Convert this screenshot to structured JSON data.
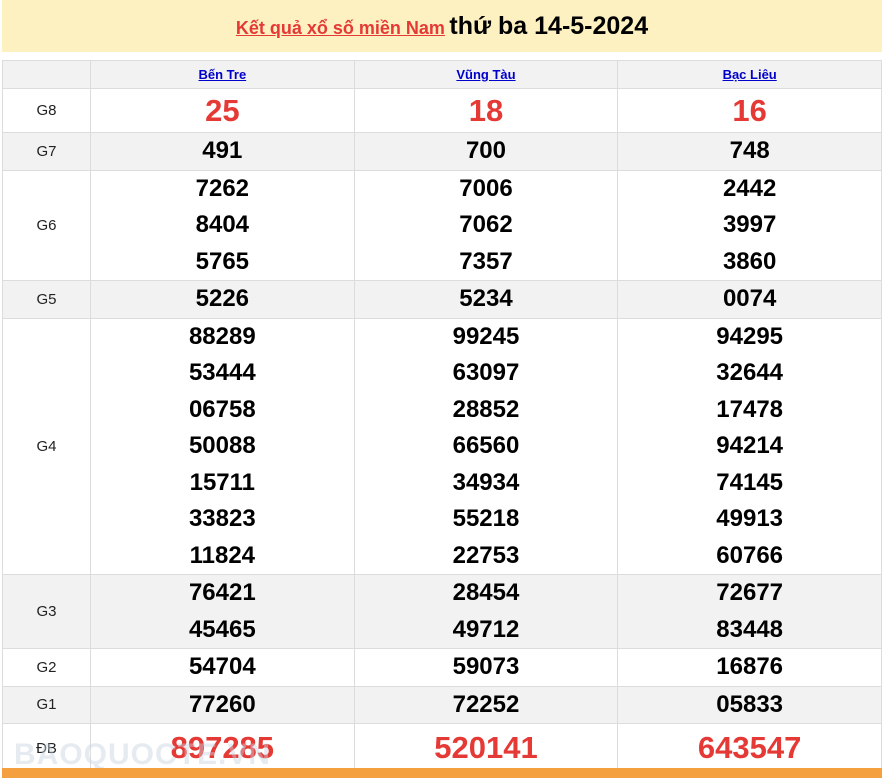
{
  "header": {
    "link": "Kết quả xổ số miền Nam",
    "date": "thứ ba 14-5-2024"
  },
  "provinces": [
    "Bến Tre",
    "Vũng Tàu",
    "Bạc Liêu"
  ],
  "prizes": [
    {
      "label": "G8",
      "values": [
        [
          "25"
        ],
        [
          "18"
        ],
        [
          "16"
        ]
      ]
    },
    {
      "label": "G7",
      "values": [
        [
          "491"
        ],
        [
          "700"
        ],
        [
          "748"
        ]
      ]
    },
    {
      "label": "G6",
      "values": [
        [
          "7262",
          "8404",
          "5765"
        ],
        [
          "7006",
          "7062",
          "7357"
        ],
        [
          "2442",
          "3997",
          "3860"
        ]
      ]
    },
    {
      "label": "G5",
      "values": [
        [
          "5226"
        ],
        [
          "5234"
        ],
        [
          "0074"
        ]
      ]
    },
    {
      "label": "G4",
      "values": [
        [
          "88289",
          "53444",
          "06758",
          "50088",
          "15711",
          "33823",
          "11824"
        ],
        [
          "99245",
          "63097",
          "28852",
          "66560",
          "34934",
          "55218",
          "22753"
        ],
        [
          "94295",
          "32644",
          "17478",
          "94214",
          "74145",
          "49913",
          "60766"
        ]
      ]
    },
    {
      "label": "G3",
      "values": [
        [
          "76421",
          "45465"
        ],
        [
          "28454",
          "49712"
        ],
        [
          "72677",
          "83448"
        ]
      ]
    },
    {
      "label": "G2",
      "values": [
        [
          "54704"
        ],
        [
          "59073"
        ],
        [
          "16876"
        ]
      ]
    },
    {
      "label": "G1",
      "values": [
        [
          "77260"
        ],
        [
          "72252"
        ],
        [
          "05833"
        ]
      ]
    },
    {
      "label": "ĐB",
      "values": [
        [
          "897285"
        ],
        [
          "520141"
        ],
        [
          "643547"
        ]
      ]
    }
  ],
  "watermark": "BAOQUOCTE.VN",
  "colors": {
    "accent": "#e53935",
    "title_bg": "#fdf1c1",
    "footer": "#f4a03e",
    "link": "#0000cc"
  }
}
